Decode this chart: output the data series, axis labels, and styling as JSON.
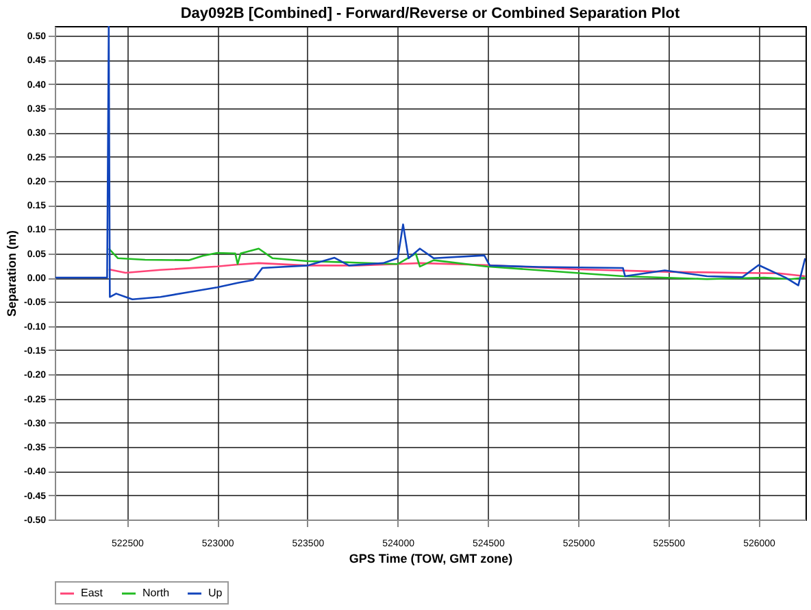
{
  "chart_data": {
    "type": "line",
    "title": "Day092B [Combined] - Forward/Reverse or Combined Separation Plot",
    "xlabel": "GPS Time (TOW, GMT zone)",
    "ylabel": "Separation (m)",
    "xlim": [
      522100,
      526260
    ],
    "xticks": [
      522500,
      523000,
      523500,
      524000,
      524500,
      525000,
      525500,
      526000
    ],
    "ylim": [
      -0.5,
      0.52
    ],
    "yticks": [
      {
        "value": 0.5,
        "label": "0.50"
      },
      {
        "value": 0.45,
        "label": "0.45"
      },
      {
        "value": 0.4,
        "label": "0.40"
      },
      {
        "value": 0.35,
        "label": "0.35"
      },
      {
        "value": 0.3,
        "label": "0.30"
      },
      {
        "value": 0.25,
        "label": "0.25"
      },
      {
        "value": 0.2,
        "label": "0.20"
      },
      {
        "value": 0.15,
        "label": "0.15"
      },
      {
        "value": 0.1,
        "label": "0.10"
      },
      {
        "value": 0.05,
        "label": "0.05"
      },
      {
        "value": 0,
        "label": "0.00"
      },
      {
        "value": -0.05,
        "label": "-0.05"
      },
      {
        "value": -0.1,
        "label": "-0.10"
      },
      {
        "value": -0.15,
        "label": "-0.15"
      },
      {
        "value": -0.2,
        "label": "-0.20"
      },
      {
        "value": -0.25,
        "label": "-0.25"
      },
      {
        "value": -0.3,
        "label": "-0.30"
      },
      {
        "value": -0.35,
        "label": "-0.35"
      },
      {
        "value": -0.4,
        "label": "-0.40"
      },
      {
        "value": -0.45,
        "label": "-0.45"
      },
      {
        "value": -0.5,
        "label": "-0.50"
      }
    ],
    "grid": true,
    "legend": "bottom left",
    "series": [
      {
        "name": "East",
        "color": "#ff4477",
        "x": [
          522399,
          522492,
          522686,
          523000,
          523113,
          523230,
          523500,
          523773,
          524000,
          524123,
          524490,
          525010,
          525500,
          525870,
          526110,
          526258
        ],
        "values": [
          0.017,
          0.01,
          0.016,
          0.023,
          0.027,
          0.03,
          0.025,
          0.025,
          0.028,
          0.03,
          0.026,
          0.017,
          0.012,
          0.01,
          0.009,
          0.003
        ]
      },
      {
        "name": "North",
        "color": "#22bb22",
        "x": [
          522399,
          522450,
          522600,
          522842,
          522920,
          523000,
          523100,
          523113,
          523130,
          523230,
          523307,
          523500,
          523773,
          524000,
          524100,
          524123,
          524200,
          524490,
          525020,
          525248,
          525714,
          526030,
          526180,
          526258
        ],
        "values": [
          0.06,
          0.04,
          0.037,
          0.036,
          0.045,
          0.051,
          0.05,
          0.028,
          0.05,
          0.06,
          0.04,
          0.034,
          0.031,
          0.028,
          0.05,
          0.023,
          0.036,
          0.023,
          0.009,
          0.003,
          -0.003,
          0.0,
          -0.003,
          0.0
        ]
      },
      {
        "name": "Up",
        "color": "#1144bb",
        "x": [
          522104,
          522390,
          522399,
          522405,
          522440,
          522492,
          522530,
          522686,
          522842,
          523000,
          523113,
          523200,
          523250,
          523500,
          523650,
          523730,
          523920,
          523960,
          524000,
          524030,
          524060,
          524123,
          524200,
          524480,
          524510,
          524780,
          525248,
          525260,
          525480,
          525714,
          525910,
          526000,
          526150,
          526220,
          526258
        ],
        "values": [
          0.0,
          0.0,
          0.52,
          -0.04,
          -0.033,
          -0.04,
          -0.045,
          -0.04,
          -0.03,
          -0.02,
          -0.011,
          -0.005,
          0.02,
          0.025,
          0.041,
          0.025,
          0.03,
          0.035,
          0.04,
          0.11,
          0.04,
          0.06,
          0.04,
          0.046,
          0.025,
          0.022,
          0.02,
          0.003,
          0.015,
          0.003,
          0.001,
          0.026,
          0.0,
          -0.016,
          0.04
        ]
      }
    ]
  }
}
